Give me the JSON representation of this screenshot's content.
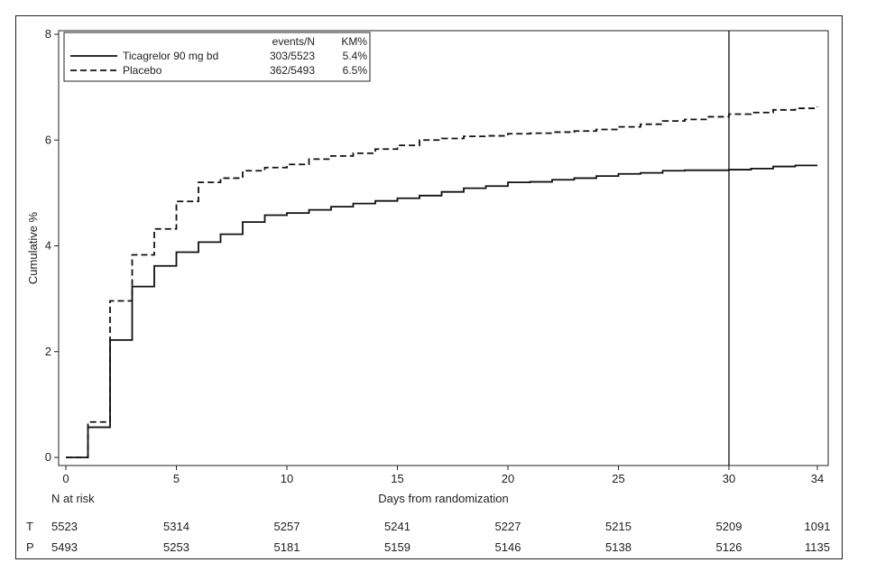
{
  "chart_data": {
    "type": "line",
    "step": true,
    "ylabel": "Cumulative %",
    "xlabel": "Days from randomization",
    "xlim": [
      0,
      34
    ],
    "ylim": [
      0,
      8
    ],
    "x_ticks": [
      0,
      5,
      10,
      15,
      20,
      25,
      30,
      34
    ],
    "y_ticks": [
      0,
      2,
      4,
      6,
      8
    ],
    "reference_line_x": 30,
    "grid": false,
    "legend": {
      "placement": "top-left",
      "header_events": "events/N",
      "header_km": "KM%",
      "entries": [
        {
          "label": "Ticagrelor 90 mg bd",
          "events_n": "303/5523",
          "km": "5.4%",
          "style": "solid"
        },
        {
          "label": "Placebo",
          "events_n": "362/5493",
          "km": "6.5%",
          "style": "dashed"
        }
      ]
    },
    "series": [
      {
        "name": "Ticagrelor 90 mg bd",
        "style": "solid",
        "x": [
          0,
          1,
          2,
          3,
          4,
          5,
          6,
          7,
          8,
          9,
          10,
          11,
          12,
          13,
          14,
          15,
          16,
          17,
          18,
          19,
          20,
          21,
          22,
          23,
          24,
          25,
          26,
          27,
          28,
          29,
          30,
          31,
          32,
          33,
          34
        ],
        "y": [
          0,
          0.57,
          2.22,
          3.23,
          3.62,
          3.88,
          4.07,
          4.22,
          4.45,
          4.58,
          4.62,
          4.68,
          4.74,
          4.8,
          4.85,
          4.9,
          4.95,
          5.02,
          5.09,
          5.13,
          5.2,
          5.21,
          5.25,
          5.28,
          5.32,
          5.36,
          5.38,
          5.42,
          5.43,
          5.43,
          5.44,
          5.46,
          5.5,
          5.52,
          5.52
        ]
      },
      {
        "name": "Placebo",
        "style": "dashed",
        "x": [
          0,
          1,
          2,
          3,
          4,
          5,
          6,
          7,
          8,
          9,
          10,
          11,
          12,
          13,
          14,
          15,
          16,
          17,
          18,
          19,
          20,
          21,
          22,
          23,
          24,
          25,
          26,
          27,
          28,
          29,
          30,
          31,
          32,
          33,
          34
        ],
        "y": [
          0,
          0.67,
          2.96,
          3.83,
          4.32,
          4.84,
          5.2,
          5.28,
          5.42,
          5.48,
          5.54,
          5.64,
          5.7,
          5.75,
          5.83,
          5.9,
          6.0,
          6.03,
          6.07,
          6.08,
          6.12,
          6.13,
          6.15,
          6.17,
          6.2,
          6.25,
          6.3,
          6.36,
          6.39,
          6.44,
          6.49,
          6.52,
          6.57,
          6.6,
          6.63
        ]
      }
    ],
    "at_risk": {
      "title": "N at risk",
      "days": [
        0,
        5,
        10,
        15,
        20,
        25,
        30,
        34
      ],
      "rows": [
        {
          "label": "T",
          "values": [
            "5523",
            "5314",
            "5257",
            "5241",
            "5227",
            "5215",
            "5209",
            "1091"
          ]
        },
        {
          "label": "P",
          "values": [
            "5493",
            "5253",
            "5181",
            "5159",
            "5146",
            "5138",
            "5126",
            "1135"
          ]
        }
      ]
    }
  },
  "colors": {
    "line": "#111111",
    "axis": "#222222"
  }
}
